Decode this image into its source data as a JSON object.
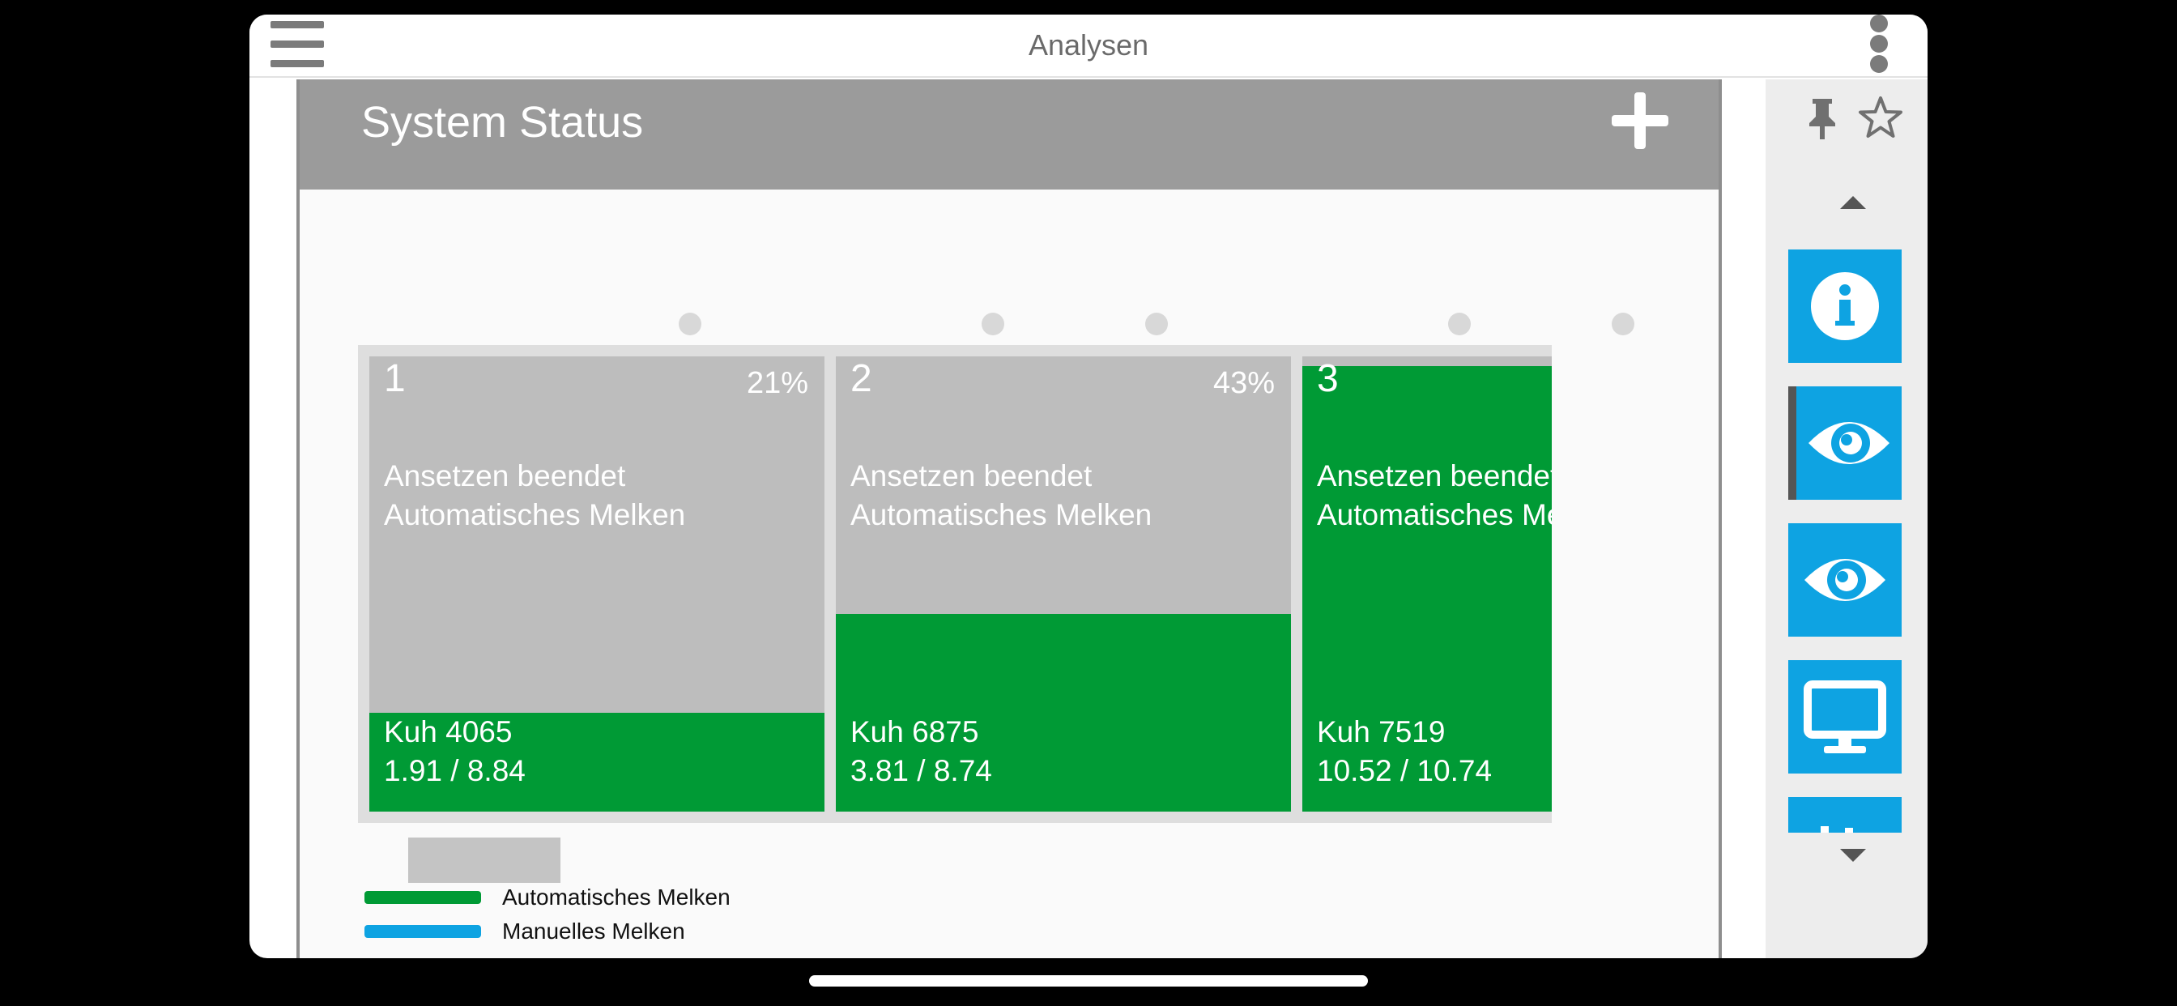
{
  "topbar": {
    "title": "Analysen",
    "menu_icon": "hamburger-menu-icon",
    "more_icon": "vertical-dots-icon"
  },
  "panel": {
    "title": "System Status",
    "add_icon": "plus-icon",
    "stalls": [
      {
        "number": "1",
        "percent": "21%",
        "status_line1": "Ansetzen beendet",
        "status_line2": "Automatisches Melken",
        "cow": "Kuh 4065",
        "yield": "1.91 / 8.84"
      },
      {
        "number": "2",
        "percent": "43%",
        "status_line1": "Ansetzen beendet",
        "status_line2": "Automatisches Melken",
        "cow": "Kuh 6875",
        "yield": "3.81 / 8.74"
      },
      {
        "number": "3",
        "percent": "",
        "status_line1": "Ansetzen beendet",
        "status_line2": "Automatisches Melken",
        "cow": "Kuh 7519",
        "yield": "10.52 / 10.74"
      }
    ],
    "legend": [
      {
        "label": "Automatisches Melken",
        "color": "#009a35"
      },
      {
        "label": "Manuelles Melken",
        "color": "#0ea3e2"
      }
    ]
  },
  "rail": {
    "icons": [
      "pin-icon",
      "star-icon",
      "chevron-up-icon",
      "info-icon",
      "eye-icon",
      "eye-icon",
      "monitor-icon",
      "chevron-down-icon"
    ]
  },
  "colors": {
    "green": "#009a35",
    "blue": "#0ea3e2",
    "header_gray": "#9b9b9b",
    "stall_gray": "#bdbdbd"
  }
}
